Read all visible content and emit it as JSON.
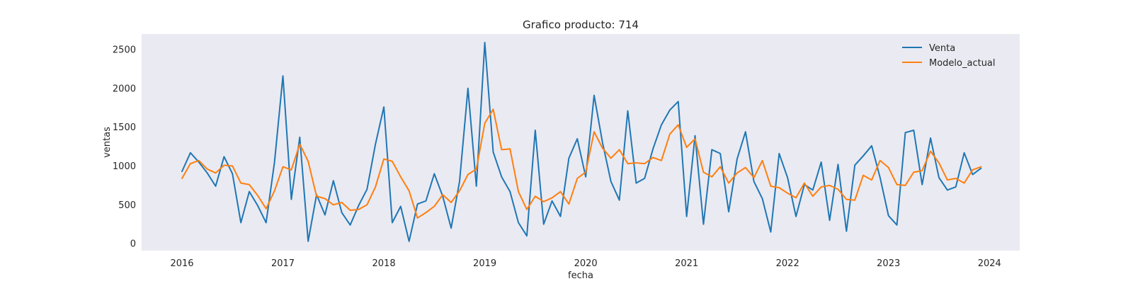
{
  "chart_data": {
    "type": "line",
    "title": "Grafico producto: 714",
    "xlabel": "fecha",
    "ylabel": "ventas",
    "xlim": [
      2015.6,
      2024.3
    ],
    "ylim": [
      -90,
      2700
    ],
    "x_ticks": [
      2016,
      2017,
      2018,
      2019,
      2020,
      2021,
      2022,
      2023,
      2024
    ],
    "x_tick_labels": [
      "2016",
      "2017",
      "2018",
      "2019",
      "2020",
      "2021",
      "2022",
      "2023",
      "2024"
    ],
    "y_ticks": [
      0,
      500,
      1000,
      1500,
      2000,
      2500
    ],
    "y_tick_labels": [
      "0",
      "500",
      "1000",
      "1500",
      "2000",
      "2500"
    ],
    "grid": false,
    "legend_position": "top-right",
    "background": "#eaeaf2",
    "x_start": 2016.0,
    "x_step_months": 1,
    "series": [
      {
        "name": "Venta",
        "color": "#1f77b4",
        "values": [
          930,
          1170,
          1050,
          910,
          740,
          1120,
          900,
          270,
          670,
          490,
          270,
          1050,
          2160,
          570,
          1370,
          30,
          630,
          370,
          810,
          400,
          240,
          490,
          700,
          1280,
          1760,
          270,
          480,
          30,
          510,
          550,
          900,
          610,
          200,
          800,
          2000,
          740,
          2590,
          1180,
          860,
          670,
          270,
          100,
          1460,
          250,
          550,
          350,
          1100,
          1350,
          860,
          1910,
          1300,
          800,
          560,
          1710,
          780,
          840,
          1220,
          1530,
          1720,
          1830,
          350,
          1390,
          250,
          1210,
          1160,
          410,
          1090,
          1440,
          800,
          580,
          150,
          1160,
          850,
          350,
          760,
          690,
          1050,
          300,
          1020,
          160,
          1010,
          1130,
          1260,
          850,
          360,
          240,
          1430,
          1460,
          760,
          1360,
          850,
          690,
          730,
          1170,
          890,
          970
        ]
      },
      {
        "name": "Modelo_actual",
        "color": "#ff7f0e",
        "values": [
          840,
          1030,
          1070,
          960,
          910,
          1010,
          1000,
          780,
          760,
          620,
          450,
          680,
          990,
          950,
          1280,
          1060,
          610,
          580,
          500,
          530,
          430,
          440,
          500,
          730,
          1090,
          1060,
          860,
          680,
          330,
          400,
          480,
          630,
          530,
          680,
          890,
          960,
          1550,
          1730,
          1210,
          1220,
          670,
          440,
          610,
          540,
          590,
          670,
          510,
          840,
          920,
          1440,
          1230,
          1100,
          1210,
          1030,
          1040,
          1030,
          1110,
          1070,
          1410,
          1530,
          1240,
          1350,
          920,
          860,
          990,
          780,
          910,
          980,
          850,
          1070,
          740,
          720,
          650,
          590,
          780,
          610,
          730,
          750,
          700,
          570,
          560,
          880,
          820,
          1070,
          980,
          760,
          750,
          920,
          940,
          1190,
          1040,
          820,
          840,
          780,
          950,
          990
        ]
      }
    ]
  }
}
